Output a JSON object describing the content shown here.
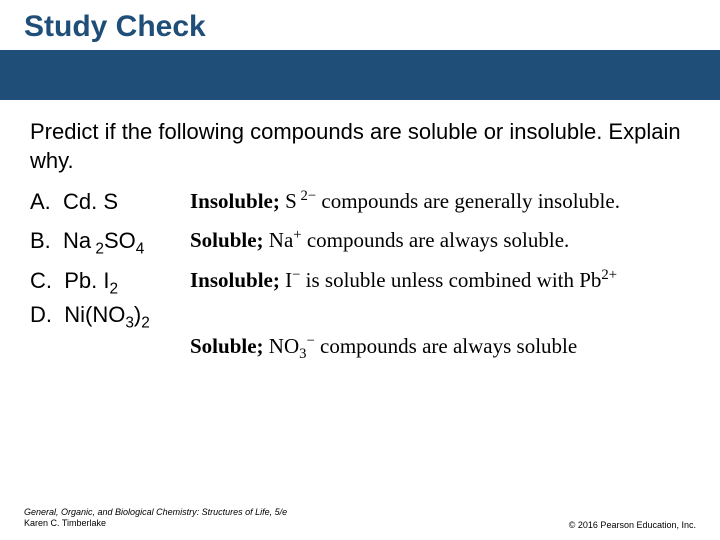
{
  "title": "Study Check",
  "bar_color": "#1f4e79",
  "title_color": "#1f4e79",
  "prompt": "Predict if the following compounds are soluble or insoluble. Explain why.",
  "items": {
    "a": {
      "letter": "A.",
      "compound_html": "Cd. S",
      "answer_prefix": "Insoluble;",
      "answer_rest_html": " S<span class='sup'> 2−</span> compounds are generally insoluble."
    },
    "b": {
      "letter": "B.",
      "compound_html": "Na<span class='sub'> 2</span>SO<span class='sub'>4</span>",
      "answer_prefix": "Soluble;",
      "answer_rest_html": " Na<span class='sup'>+</span> compounds are always soluble."
    },
    "c": {
      "letter": "C.",
      "compound_html": "Pb. I<span class='sub'>2</span>",
      "answer_prefix": "Insoluble;",
      "answer_rest_html": " I<span class='sup'>−</span> is soluble unless combined with Pb<span class='sup'>2+</span>"
    },
    "d": {
      "letter": "D.",
      "compound_html": "Ni(NO<span class='sub'>3</span>)<span class='sub'>2</span>",
      "answer_prefix": "Soluble;",
      "answer_rest_html": " NO<span class='sub'>3</span><span class='sup'>−</span> compounds are always soluble"
    }
  },
  "footer": {
    "book": "General, Organic, and Biological Chemistry: Structures of Life, 5/e",
    "author": "Karen C. Timberlake",
    "copyright": "© 2016 Pearson Education, Inc."
  }
}
